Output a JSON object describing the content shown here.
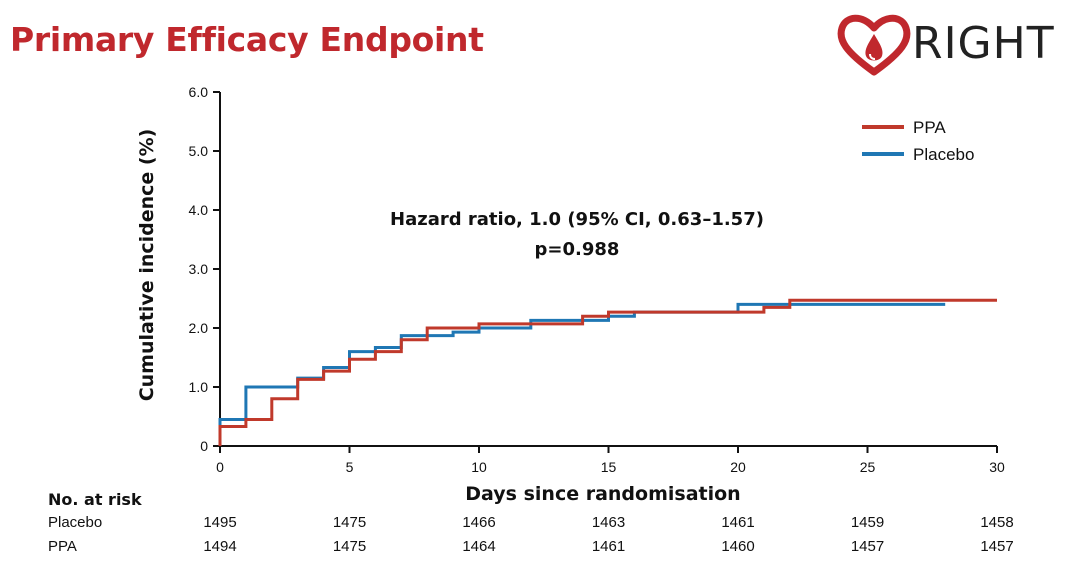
{
  "header": {
    "title": "Primary Efficacy Endpoint",
    "logo_text": "RIGHT"
  },
  "colors": {
    "title": "#c0282d",
    "ppa": "#c0392b",
    "placebo": "#1f77b4"
  },
  "chart_data": {
    "type": "line",
    "step": true,
    "xlabel": "Days since randomisation",
    "ylabel": "Cumulative incidence (%)",
    "xlim": [
      0,
      30
    ],
    "ylim": [
      0,
      6
    ],
    "xticks": [
      0,
      5,
      10,
      15,
      20,
      25,
      30
    ],
    "yticks": [
      {
        "v": 0,
        "label": "0"
      },
      {
        "v": 1,
        "label": "1.0"
      },
      {
        "v": 2,
        "label": "2.0"
      },
      {
        "v": 3,
        "label": "3.0"
      },
      {
        "v": 4,
        "label": "4.0"
      },
      {
        "v": 5,
        "label": "5.0"
      },
      {
        "v": 6,
        "label": "6.0"
      }
    ],
    "legend": {
      "position": "top-right",
      "entries": [
        "PPA",
        "Placebo"
      ]
    },
    "annotation": [
      "Hazard ratio, 1.0 (95% CI, 0.63–1.57)",
      "p=0.988"
    ],
    "series": [
      {
        "name": "Placebo",
        "color": "#1f77b4",
        "x": [
          0,
          1,
          3,
          4,
          5,
          6,
          7,
          9,
          10,
          12,
          14,
          15,
          16,
          20,
          22,
          28
        ],
        "y": [
          0.45,
          1.0,
          1.15,
          1.33,
          1.6,
          1.67,
          1.87,
          1.93,
          2.0,
          2.13,
          2.13,
          2.2,
          2.27,
          2.4,
          2.4,
          2.4
        ]
      },
      {
        "name": "PPA",
        "color": "#c0392b",
        "x": [
          0,
          1,
          2,
          3,
          4,
          5,
          6,
          7,
          8,
          10,
          12,
          14,
          15,
          20,
          21,
          22,
          30
        ],
        "y": [
          0.33,
          0.45,
          0.8,
          1.13,
          1.27,
          1.47,
          1.6,
          1.8,
          2.0,
          2.07,
          2.07,
          2.2,
          2.27,
          2.27,
          2.35,
          2.47,
          2.47
        ]
      }
    ]
  },
  "risk_table": {
    "title": "No. at risk",
    "days": [
      0,
      5,
      10,
      15,
      20,
      25,
      30
    ],
    "rows": [
      {
        "label": "Placebo",
        "values": [
          "1495",
          "1475",
          "1466",
          "1463",
          "1461",
          "1459",
          "1458"
        ]
      },
      {
        "label": "PPA",
        "values": [
          "1494",
          "1475",
          "1464",
          "1461",
          "1460",
          "1457",
          "1457"
        ]
      }
    ]
  }
}
